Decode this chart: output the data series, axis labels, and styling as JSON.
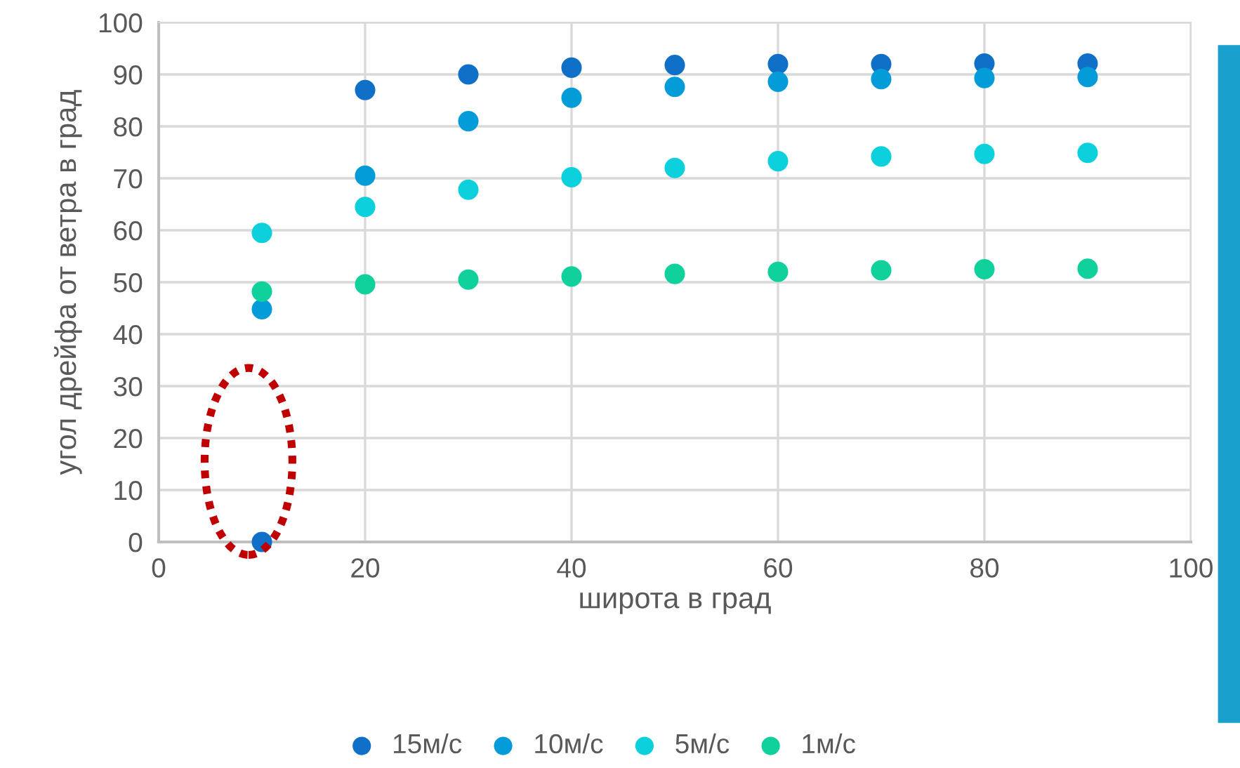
{
  "chart_data": {
    "type": "scatter",
    "xlabel": "широта в град",
    "ylabel": "угол дрейфа от ветра в град",
    "x": [
      10,
      20,
      30,
      40,
      50,
      60,
      70,
      80,
      90
    ],
    "series": [
      {
        "name": "15м/с",
        "color": "#1070c8",
        "values": [
          0,
          87,
          90,
          91.3,
          91.8,
          92,
          92,
          92.1,
          92.1
        ]
      },
      {
        "name": "10м/с",
        "color": "#049cd8",
        "values": [
          44.8,
          70.5,
          81,
          85.5,
          87.6,
          88.6,
          89.1,
          89.3,
          89.5
        ]
      },
      {
        "name": "5м/с",
        "color": "#0cd0dc",
        "values": [
          59.5,
          64.5,
          67.8,
          70.2,
          72,
          73.3,
          74.2,
          74.7,
          74.9
        ]
      },
      {
        "name": "1м/с",
        "color": "#10d09c",
        "values": [
          48.2,
          49.6,
          50.5,
          51.1,
          51.6,
          52,
          52.3,
          52.5,
          52.6
        ]
      }
    ],
    "xlim": [
      0,
      100
    ],
    "xticks": [
      0,
      20,
      40,
      60,
      80,
      100
    ],
    "ylim": [
      0,
      100
    ],
    "yticks": [
      0,
      10,
      20,
      30,
      40,
      50,
      60,
      70,
      80,
      90,
      100
    ],
    "grid": true,
    "legend": "bottom",
    "marker": "circle"
  }
}
